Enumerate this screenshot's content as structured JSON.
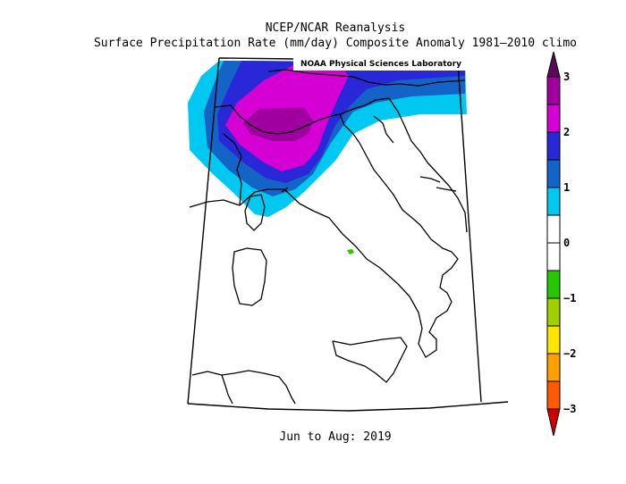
{
  "title_line1": "NCEP/NCAR Reanalysis",
  "title_line2": "Surface Precipitation Rate (mm/day) Composite Anomaly 1981–2010 climo",
  "credit": "NOAA Physical Sciences Laboratory",
  "period": "Jun to Aug: 2019",
  "colorbar": {
    "labels": [
      "3",
      "2",
      "1",
      "0",
      "−1",
      "−2",
      "−3"
    ],
    "colors": [
      "#5c0a5c",
      "#a000a0",
      "#d400d4",
      "#2828d8",
      "#1464c8",
      "#00c8f0",
      "#ffffff",
      "#ffffff",
      "#28c800",
      "#a0d000",
      "#ffe600",
      "#ffa000",
      "#ff5a00",
      "#d40000"
    ]
  },
  "anomaly_colors": {
    "band_0_5_to_1": "#00c8f0",
    "band_1_to_1_5": "#1464c8",
    "band_1_5_to_2": "#2828d8",
    "band_2_to_2_5": "#d400d4",
    "band_2_5_to_3": "#a000a0",
    "band_above_3": "#5c0a5c",
    "band_neg_0_5_to_1": "#28c800"
  }
}
